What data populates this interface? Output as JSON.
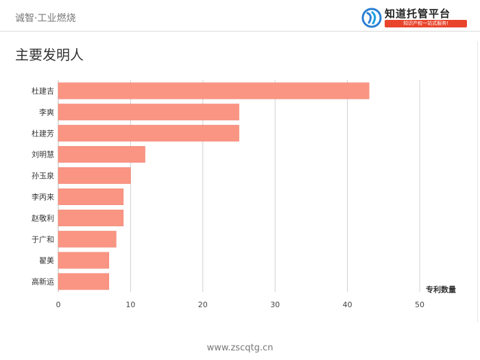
{
  "header": {
    "title": "诚智·工业燃烧"
  },
  "logo": {
    "name": "知道托管平台",
    "slogan": "知识产权一站式服务!",
    "icon": "logo-swirl-icon"
  },
  "page_title": "主要发明人",
  "footer": {
    "url": "www.zscqtg.cn"
  },
  "colors": {
    "bar": "#fa9583",
    "bar_stroke": "#f08070",
    "grid": "#d0d0d0"
  },
  "chart_data": {
    "type": "bar",
    "orientation": "horizontal",
    "categories": [
      "杜建吉",
      "李爽",
      "杜建芳",
      "刘明慧",
      "孙玉泉",
      "李丙来",
      "赵敬利",
      "于广和",
      "翟美",
      "高新运"
    ],
    "values": [
      43,
      25,
      25,
      12,
      10,
      9,
      9,
      8,
      7,
      7
    ],
    "xlabel": "专利数量",
    "xlim": [
      0,
      50
    ],
    "xticks": [
      0,
      10,
      20,
      30,
      40,
      50
    ],
    "grid": true,
    "legend": "none"
  }
}
